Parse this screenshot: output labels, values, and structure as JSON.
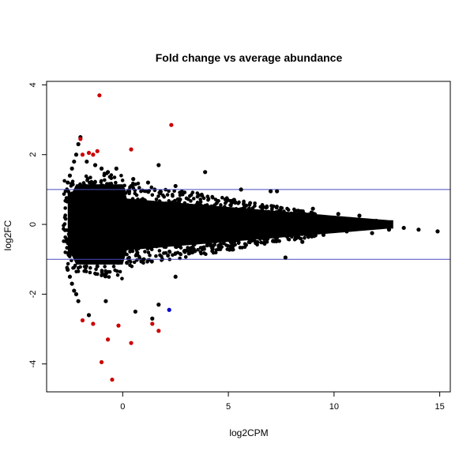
{
  "chart_data": {
    "type": "scatter",
    "title": "Fold change vs average abundance",
    "xlabel": "log2CPM",
    "ylabel": "log2FC",
    "xlim": [
      -3.6,
      15.5
    ],
    "ylim": [
      -4.8,
      4.1
    ],
    "x_ticks": [
      0,
      5,
      10,
      15
    ],
    "y_ticks": [
      -4,
      -2,
      0,
      2,
      4
    ],
    "grid": false,
    "legend": "none",
    "hlines": [
      {
        "y": 1,
        "color": "#4a4ac0"
      },
      {
        "y": -1,
        "color": "#4a4ac0"
      }
    ],
    "series": [
      {
        "color": "#000000",
        "points": [
          [
            -2.0,
            2.5
          ],
          [
            -2.1,
            2.3
          ],
          [
            -2.2,
            2.0
          ],
          [
            -2.3,
            1.8
          ],
          [
            -2.4,
            1.6
          ],
          [
            -2.5,
            1.4
          ],
          [
            -2.6,
            1.2
          ],
          [
            -2.2,
            -2.0
          ],
          [
            -2.3,
            -1.9
          ],
          [
            -2.4,
            -1.7
          ],
          [
            -2.5,
            -1.5
          ],
          [
            -2.6,
            -1.3
          ],
          [
            -2.1,
            -2.2
          ],
          [
            -1.7,
            1.8
          ],
          [
            -1.3,
            1.7
          ],
          [
            -1.0,
            1.6
          ],
          [
            -0.7,
            1.5
          ],
          [
            -0.3,
            1.6
          ],
          [
            0.5,
            1.3
          ],
          [
            1.2,
            1.2
          ],
          [
            1.7,
            1.7
          ],
          [
            2.5,
            1.1
          ],
          [
            3.9,
            1.5
          ],
          [
            5.6,
            1.0
          ],
          [
            7.0,
            0.95
          ],
          [
            7.3,
            0.95
          ],
          [
            9.0,
            0.45
          ],
          [
            10.2,
            0.3
          ],
          [
            11.2,
            0.25
          ],
          [
            12.0,
            0.1
          ],
          [
            13.3,
            -0.1
          ],
          [
            14.0,
            -0.15
          ],
          [
            14.9,
            -0.2
          ],
          [
            -1.6,
            -2.6
          ],
          [
            -0.8,
            -2.2
          ],
          [
            0.6,
            -2.5
          ],
          [
            1.7,
            -2.3
          ],
          [
            2.5,
            -1.5
          ],
          [
            1.4,
            -2.7
          ],
          [
            -1.2,
            -1.2
          ],
          [
            0.2,
            -1.1
          ],
          [
            1.0,
            -1.0
          ],
          [
            3.3,
            -0.8
          ],
          [
            5.1,
            -0.7
          ],
          [
            7.7,
            -0.95
          ],
          [
            8.5,
            -0.5
          ],
          [
            6.5,
            -0.4
          ],
          [
            4.0,
            -0.6
          ],
          [
            9.5,
            -0.3
          ],
          [
            10.6,
            -0.2
          ],
          [
            11.8,
            -0.25
          ],
          [
            12.6,
            -0.15
          ]
        ]
      },
      {
        "color": "#cc0000",
        "points": [
          [
            -1.1,
            3.7
          ],
          [
            2.3,
            2.85
          ],
          [
            -2.0,
            2.45
          ],
          [
            0.4,
            2.15
          ],
          [
            -1.2,
            2.1
          ],
          [
            -1.6,
            2.05
          ],
          [
            -1.4,
            2.0
          ],
          [
            -1.9,
            2.0
          ],
          [
            -1.9,
            -2.75
          ],
          [
            -1.4,
            -2.85
          ],
          [
            -0.2,
            -2.9
          ],
          [
            1.4,
            -2.85
          ],
          [
            1.7,
            -3.05
          ],
          [
            -0.7,
            -3.3
          ],
          [
            0.4,
            -3.4
          ],
          [
            -1.0,
            -3.95
          ],
          [
            -0.5,
            -4.45
          ]
        ]
      },
      {
        "color": "#0000cc",
        "points": [
          [
            2.2,
            -2.45
          ]
        ]
      }
    ]
  }
}
